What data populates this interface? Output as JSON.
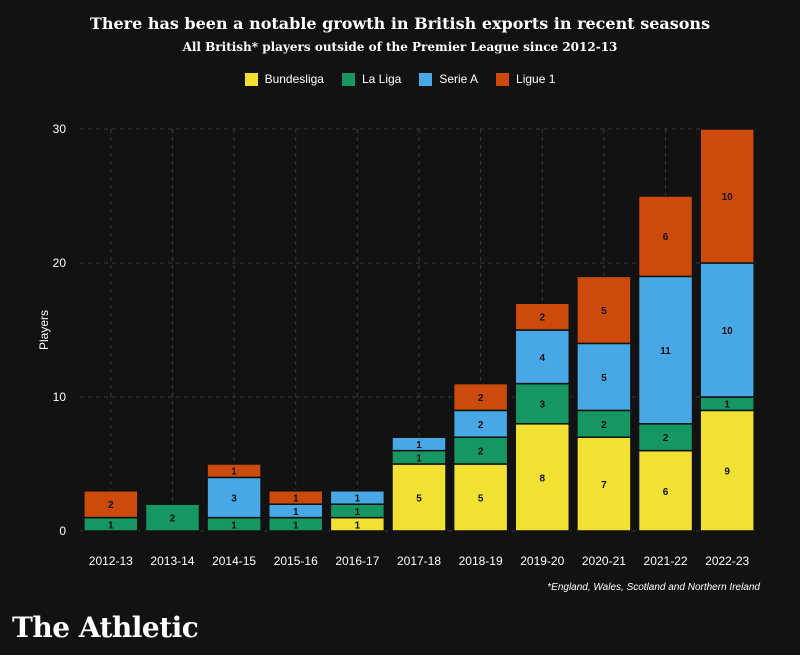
{
  "header": {
    "title": "There has been a notable growth in British exports in recent seasons",
    "subtitle": "All British* players outside of the Premier League since 2012-13"
  },
  "footnote": "*England, Wales, Scotland and Northern Ireland",
  "brand": "The Athletic",
  "colors": {
    "Bundesliga": "#f0e132",
    "La Liga": "#169660",
    "Serie A": "#47a8e5",
    "Ligue 1": "#cc4a0c",
    "background": "#121212"
  },
  "chart_data": {
    "type": "bar",
    "stacked": true,
    "title": "There has been a notable growth in British exports in recent seasons",
    "subtitle": "All British* players outside of the Premier League since 2012-13",
    "xlabel": "",
    "ylabel": "Players",
    "ylim": [
      0,
      30
    ],
    "yticks": [
      0,
      10,
      20,
      30
    ],
    "grid": true,
    "legend": "top-center",
    "categories": [
      "2012-13",
      "2013-14",
      "2014-15",
      "2015-16",
      "2016-17",
      "2017-18",
      "2018-19",
      "2019-20",
      "2020-21",
      "2021-22",
      "2022-23"
    ],
    "series": [
      {
        "name": "Bundesliga",
        "values": [
          0,
          0,
          0,
          0,
          1,
          5,
          5,
          8,
          7,
          6,
          9
        ]
      },
      {
        "name": "La Liga",
        "values": [
          1,
          2,
          1,
          1,
          1,
          1,
          2,
          3,
          2,
          2,
          1
        ]
      },
      {
        "name": "Serie A",
        "values": [
          0,
          0,
          3,
          1,
          1,
          1,
          2,
          4,
          5,
          11,
          10
        ]
      },
      {
        "name": "Ligue 1",
        "values": [
          2,
          0,
          1,
          1,
          0,
          0,
          2,
          2,
          5,
          6,
          10
        ]
      }
    ]
  }
}
